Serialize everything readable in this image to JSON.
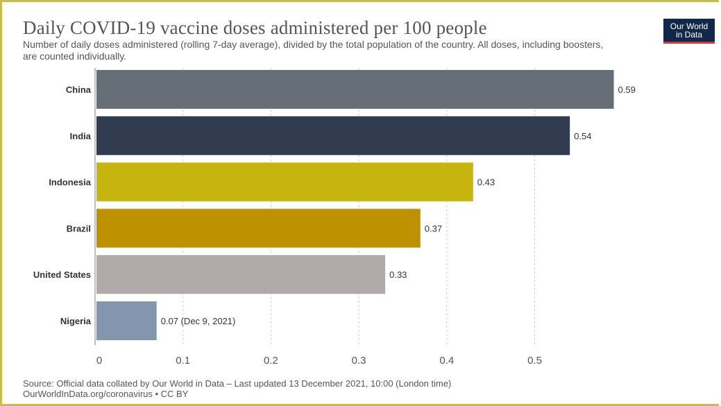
{
  "title": "Daily COVID-19 vaccine doses administered per 100 people",
  "subtitle": "Number of daily doses administered (rolling 7-day average), divided by the total population of the country. All doses, including boosters, are counted individually.",
  "logo": {
    "line1": "Our World",
    "line2": "in Data"
  },
  "source": {
    "line1": "Source: Official data collated by Our World in Data – Last updated 13 December 2021, 10:00 (London time)",
    "line2": "OurWorldInData.org/coronavirus • CC BY"
  },
  "colors": {
    "frame": "#c9bc4a",
    "grid": "#cccccc",
    "axis": "#aaaaaa"
  },
  "chart_data": {
    "type": "bar",
    "orientation": "horizontal",
    "categories": [
      "China",
      "India",
      "Indonesia",
      "Brazil",
      "United States",
      "Nigeria"
    ],
    "values": [
      0.59,
      0.54,
      0.43,
      0.37,
      0.33,
      0.07
    ],
    "value_labels": [
      "0.59",
      "0.54",
      "0.43",
      "0.37",
      "0.33",
      "0.07 (Dec 9, 2021)"
    ],
    "bar_colors": [
      "#666e78",
      "#323c50",
      "#c6b40f",
      "#be9100",
      "#b0aaa9",
      "#8396af"
    ],
    "xticks": [
      0,
      0.1,
      0.2,
      0.3,
      0.4,
      0.5
    ],
    "xtick_labels": [
      "0",
      "0.1",
      "0.2",
      "0.3",
      "0.4",
      "0.5"
    ],
    "xlim": [
      0,
      0.59
    ],
    "grid": "vertical dashed",
    "legend": "none"
  }
}
